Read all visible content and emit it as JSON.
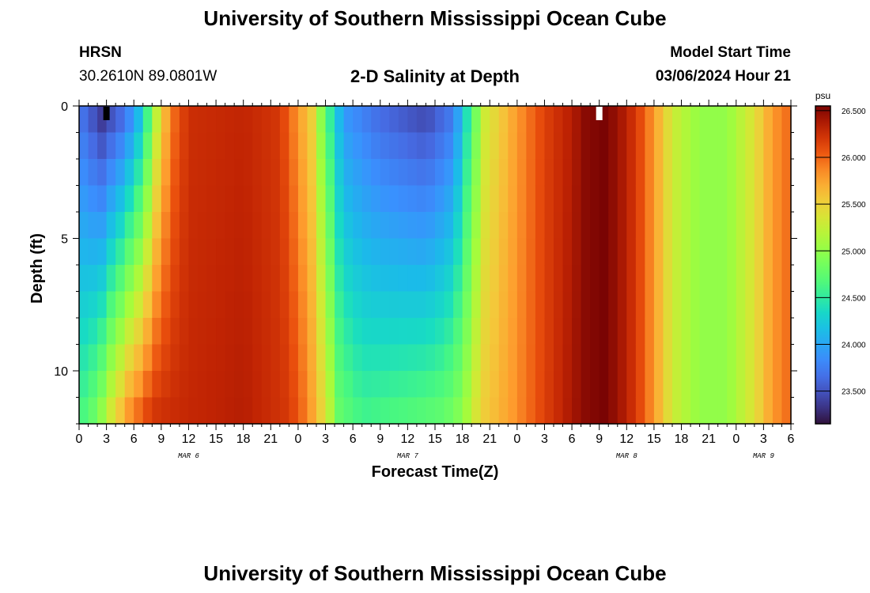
{
  "header": {
    "title": "University of Southern Mississippi Ocean Cube",
    "station": "HRSN",
    "coords": "30.2610N  89.0801W",
    "subtitle": "2-D Salinity at Depth",
    "model_start_label": "Model Start Time",
    "model_start_value": "03/06/2024 Hour 21"
  },
  "footer": {
    "title": "University of Southern Mississippi Ocean Cube"
  },
  "chart_data": {
    "type": "heatmap",
    "xlabel": "Forecast Time(Z)",
    "ylabel": "Depth (ft)",
    "x_hours_range": [
      0,
      78
    ],
    "x_tick_labels": [
      "0",
      "3",
      "6",
      "9",
      "12",
      "15",
      "18",
      "21",
      "0",
      "3",
      "6",
      "9",
      "12",
      "15",
      "18",
      "21",
      "0",
      "3",
      "6",
      "9",
      "12",
      "15",
      "18",
      "21",
      "0",
      "3",
      "6"
    ],
    "date_labels": [
      {
        "label": "MAR 6",
        "hour": 12
      },
      {
        "label": "MAR 7",
        "hour": 36
      },
      {
        "label": "MAR 8",
        "hour": 60
      },
      {
        "label": "MAR 9",
        "hour": 75
      }
    ],
    "y_range": [
      0,
      12
    ],
    "y_tick_labels": [
      "0",
      "5",
      "10"
    ],
    "y_tick_values": [
      0,
      5,
      10
    ],
    "colorbar": {
      "unit": "psu",
      "min": 23.15,
      "max": 26.55,
      "tick_values": [
        23.5,
        24.0,
        24.5,
        25.0,
        25.5,
        26.0,
        26.5
      ],
      "tick_labels": [
        "23.500",
        "24.000",
        "24.500",
        "25.000",
        "25.500",
        "26.000",
        "26.500"
      ]
    },
    "surface_profile": [
      {
        "hour": 0,
        "psu": 23.7
      },
      {
        "hour": 2.5,
        "psu": 23.3
      },
      {
        "hour": 5,
        "psu": 23.6
      },
      {
        "hour": 7,
        "psu": 24.2
      },
      {
        "hour": 8.5,
        "psu": 25.2
      },
      {
        "hour": 10,
        "psu": 25.9
      },
      {
        "hour": 12,
        "psu": 26.25
      },
      {
        "hour": 18,
        "psu": 26.3
      },
      {
        "hour": 22,
        "psu": 26.2
      },
      {
        "hour": 23.5,
        "psu": 25.9
      },
      {
        "hour": 25.5,
        "psu": 25.5
      },
      {
        "hour": 27,
        "psu": 24.7
      },
      {
        "hour": 29,
        "psu": 23.9
      },
      {
        "hour": 33,
        "psu": 23.6
      },
      {
        "hour": 38,
        "psu": 23.4
      },
      {
        "hour": 41,
        "psu": 23.7
      },
      {
        "hour": 42.5,
        "psu": 24.4
      },
      {
        "hour": 44.5,
        "psu": 25.3
      },
      {
        "hour": 48,
        "psu": 25.8
      },
      {
        "hour": 51,
        "psu": 26.15
      },
      {
        "hour": 54,
        "psu": 26.35
      },
      {
        "hour": 55.5,
        "psu": 26.5
      },
      {
        "hour": 57.5,
        "psu": 26.55
      },
      {
        "hour": 59,
        "psu": 26.45
      },
      {
        "hour": 61,
        "psu": 26.2
      },
      {
        "hour": 63,
        "psu": 25.8
      },
      {
        "hour": 65,
        "psu": 25.3
      },
      {
        "hour": 68,
        "psu": 25.0
      },
      {
        "hour": 71,
        "psu": 25.0
      },
      {
        "hour": 74,
        "psu": 25.4
      },
      {
        "hour": 76,
        "psu": 25.8
      },
      {
        "hour": 78,
        "psu": 26.0
      }
    ],
    "bottom_profile": [
      {
        "hour": 0,
        "psu": 24.6
      },
      {
        "hour": 2,
        "psu": 24.9
      },
      {
        "hour": 3.5,
        "psu": 25.4
      },
      {
        "hour": 5.5,
        "psu": 25.9
      },
      {
        "hour": 8,
        "psu": 26.25
      },
      {
        "hour": 18,
        "psu": 26.35
      },
      {
        "hour": 23,
        "psu": 26.2
      },
      {
        "hour": 25,
        "psu": 25.9
      },
      {
        "hour": 27,
        "psu": 25.4
      },
      {
        "hour": 28.5,
        "psu": 24.8
      },
      {
        "hour": 31,
        "psu": 24.6
      },
      {
        "hour": 36,
        "psu": 24.7
      },
      {
        "hour": 40,
        "psu": 24.8
      },
      {
        "hour": 42,
        "psu": 25.0
      },
      {
        "hour": 44,
        "psu": 25.5
      },
      {
        "hour": 48,
        "psu": 25.85
      },
      {
        "hour": 51,
        "psu": 26.15
      },
      {
        "hour": 54,
        "psu": 26.4
      },
      {
        "hour": 55.5,
        "psu": 26.5
      },
      {
        "hour": 57.5,
        "psu": 26.55
      },
      {
        "hour": 59,
        "psu": 26.45
      },
      {
        "hour": 61,
        "psu": 26.2
      },
      {
        "hour": 63,
        "psu": 25.8
      },
      {
        "hour": 65,
        "psu": 25.3
      },
      {
        "hour": 68,
        "psu": 25.0
      },
      {
        "hour": 71,
        "psu": 25.0
      },
      {
        "hour": 74,
        "psu": 25.4
      },
      {
        "hour": 76,
        "psu": 25.8
      },
      {
        "hour": 78,
        "psu": 26.0
      }
    ],
    "markers": [
      {
        "hour": 3,
        "color": "#000000"
      },
      {
        "hour": 57,
        "color": "#ffffff"
      }
    ]
  }
}
